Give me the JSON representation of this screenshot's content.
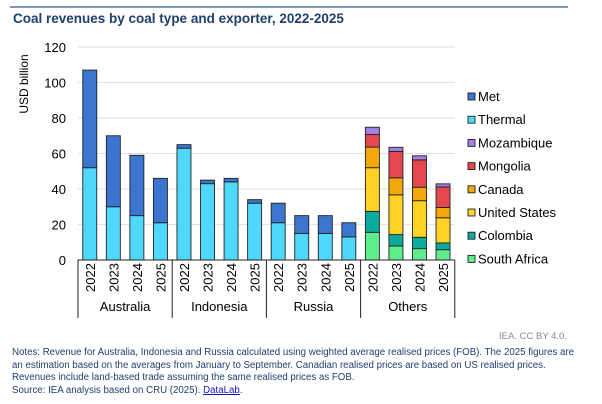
{
  "title": "Coal revenues by coal type and exporter, 2022-2025",
  "credit": "IEA. CC BY 4.0.",
  "notes": "Notes: Revenue for Australia, Indonesia and Russia calculated using weighted average realised prices (FOB). The 2025 figures are an estimation based on the averages from January to September. Canadian realised prices are based on US realised prices. Revenues include land-based trade assuming the same realised prices as FOB.",
  "source_prefix": "Source: IEA analysis based on CRU (2025). ",
  "source_link": "DataLab",
  "source_suffix": ".",
  "chart_data": {
    "type": "bar",
    "stacked": true,
    "title": "Coal revenues by coal type and exporter, 2022-2025",
    "xlabel": "",
    "ylabel": "USD billion",
    "ylim": [
      0,
      120
    ],
    "yticks": [
      0,
      20,
      40,
      60,
      80,
      100,
      120
    ],
    "grid": true,
    "legend_position": "right",
    "groups": [
      {
        "name": "Australia",
        "categories": [
          "2022",
          "2023",
          "2024",
          "2025"
        ]
      },
      {
        "name": "Indonesia",
        "categories": [
          "2022",
          "2023",
          "2024",
          "2025"
        ]
      },
      {
        "name": "Russia",
        "categories": [
          "2022",
          "2023",
          "2024",
          "2025"
        ]
      },
      {
        "name": "Others",
        "categories": [
          "2022",
          "2023",
          "2024",
          "2025"
        ]
      }
    ],
    "series": [
      {
        "name": "South Africa",
        "color": "#5eee8e",
        "values": [
          0,
          0,
          0,
          0,
          0,
          0,
          0,
          0,
          0,
          0,
          0,
          0,
          15.6,
          7.9,
          6.4,
          5.8
        ]
      },
      {
        "name": "Colombia",
        "color": "#0aab9e",
        "values": [
          0,
          0,
          0,
          0,
          0,
          0,
          0,
          0,
          0,
          0,
          0,
          0,
          11.8,
          6.4,
          6.4,
          3.8
        ]
      },
      {
        "name": "United States",
        "color": "#ffd325",
        "values": [
          0,
          0,
          0,
          0,
          0,
          0,
          0,
          0,
          0,
          0,
          0,
          0,
          24.6,
          22.4,
          20.6,
          14.2
        ]
      },
      {
        "name": "Canada",
        "color": "#f2a80d",
        "values": [
          0,
          0,
          0,
          0,
          0,
          0,
          0,
          0,
          0,
          0,
          0,
          0,
          11.6,
          9.6,
          7.6,
          5.8
        ]
      },
      {
        "name": "Mongolia",
        "color": "#e4474d",
        "values": [
          0,
          0,
          0,
          0,
          0,
          0,
          0,
          0,
          0,
          0,
          0,
          0,
          7.1,
          14.9,
          15.4,
          11.6
        ]
      },
      {
        "name": "Mozambique",
        "color": "#a57fe6",
        "values": [
          0,
          0,
          0,
          0,
          0,
          0,
          0,
          0,
          0,
          0,
          0,
          0,
          4.1,
          2.3,
          2.3,
          1.7
        ]
      },
      {
        "name": "Thermal",
        "color": "#4fd8fb",
        "values": [
          52,
          30,
          25,
          21,
          63,
          43,
          44,
          32,
          21,
          15,
          15,
          13,
          0,
          0,
          0,
          0
        ]
      },
      {
        "name": "Met",
        "color": "#3b75d0",
        "values": [
          55,
          40,
          34,
          25,
          2,
          2,
          2,
          2,
          11,
          10,
          10,
          8,
          0,
          0,
          0,
          0
        ]
      }
    ],
    "legend_order": [
      "Met",
      "Thermal",
      "Mozambique",
      "Mongolia",
      "Canada",
      "United States",
      "Colombia",
      "South Africa"
    ]
  }
}
